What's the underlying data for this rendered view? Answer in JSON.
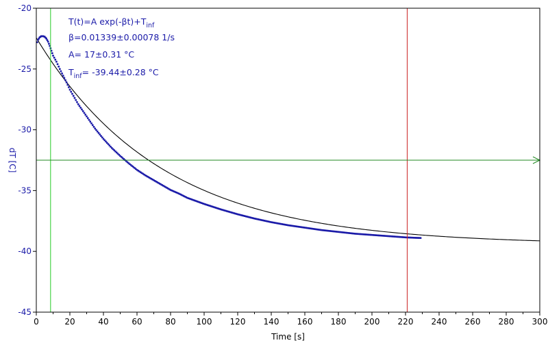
{
  "chart_data": {
    "type": "scatter",
    "xlabel": "Time [s]",
    "ylabel": "dT [C]",
    "xlim": [
      0,
      300
    ],
    "ylim": [
      -45,
      -20
    ],
    "x_ticks": [
      0,
      20,
      40,
      60,
      80,
      100,
      120,
      140,
      160,
      180,
      200,
      220,
      240,
      260,
      280,
      300
    ],
    "y_ticks": [
      -20,
      -25,
      -30,
      -35,
      -40,
      -45
    ],
    "grid": false,
    "colors": {
      "data": "#1a1aa8",
      "fit": "#000000",
      "left_cursor": "#22cc22",
      "right_cursor": "#cc2222",
      "horizontal_cursor": "#228822"
    },
    "annotations": [
      {
        "text": "T(t)=A exp(-βt)+T",
        "sub": "inf"
      },
      {
        "text": "β=0.01339±0.00078 1/s"
      },
      {
        "text": "A= 17±0.31 °C"
      },
      {
        "text": "T",
        "sub": "inf",
        "suffix": "= -39.44±0.28 °C"
      }
    ],
    "fit": {
      "model": "T(t)=A exp(-βt)+T_inf",
      "beta": 0.01339,
      "A": 17,
      "T_inf": -39.44,
      "x_range": [
        0,
        300
      ]
    },
    "cursors": {
      "vertical_left_x": 8.5,
      "vertical_right_x": 221,
      "horizontal_y": -32.5
    },
    "series": [
      {
        "x": [
          0.5,
          1,
          1.5,
          2,
          3,
          4,
          5,
          6,
          7,
          8,
          9,
          10,
          12,
          14,
          16,
          18,
          20,
          25,
          30,
          35,
          40,
          45,
          50,
          55,
          60,
          65,
          70,
          75,
          80,
          85,
          90,
          95,
          100,
          110,
          120,
          130,
          140,
          150,
          160,
          170,
          180,
          190,
          200,
          210,
          220,
          225,
          229
        ],
        "y": [
          -22.8,
          -22.6,
          -22.5,
          -22.4,
          -22.3,
          -22.3,
          -22.35,
          -22.5,
          -22.75,
          -23.1,
          -23.5,
          -23.9,
          -24.4,
          -25.0,
          -25.55,
          -26.1,
          -26.7,
          -27.9,
          -28.9,
          -29.9,
          -30.75,
          -31.5,
          -32.15,
          -32.75,
          -33.3,
          -33.75,
          -34.15,
          -34.55,
          -34.95,
          -35.25,
          -35.6,
          -35.85,
          -36.1,
          -36.55,
          -36.95,
          -37.3,
          -37.6,
          -37.85,
          -38.05,
          -38.25,
          -38.4,
          -38.55,
          -38.65,
          -38.75,
          -38.85,
          -38.88,
          -38.9
        ]
      }
    ]
  }
}
